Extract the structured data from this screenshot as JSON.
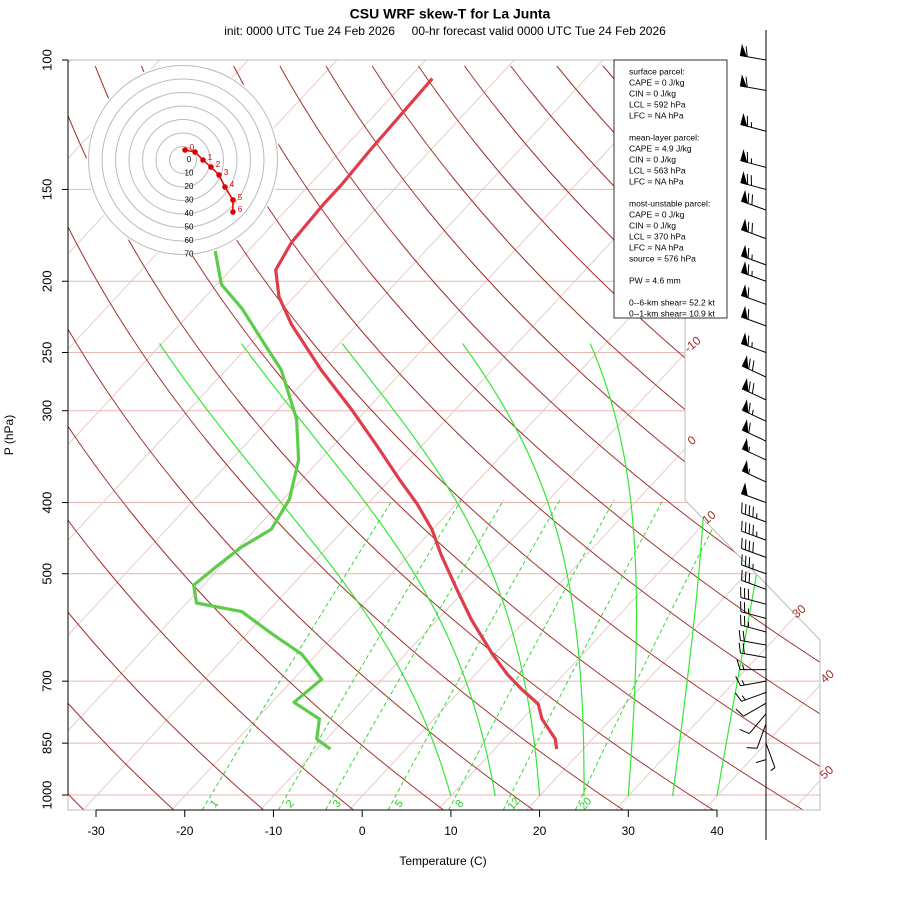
{
  "chart_data": {
    "type": "skewt",
    "title": "CSU WRF skew-T for La Junta",
    "subtitle": "init: 0000 UTC Tue 24 Feb 2026     00-hr forecast valid 0000 UTC Tue 24 Feb 2026",
    "x_label": "Temperature (C)",
    "y_label": "P (hPa)",
    "xlim": [
      -33.16,
      51.61
    ],
    "xticks": [
      -30,
      -20,
      -10,
      0,
      10,
      20,
      30,
      40
    ],
    "ylim": [
      1048,
      100
    ],
    "yticks": [
      100,
      150,
      200,
      250,
      300,
      400,
      500,
      700,
      850,
      1000
    ],
    "log_y": true,
    "grid": true,
    "series": [
      {
        "color": "#e03c4a",
        "pressure": [
          866,
          839,
          788,
          752,
          718,
          685,
          643,
          577,
          525,
          471,
          435,
          402,
          372,
          334,
          299,
          264,
          229,
          210,
          193,
          177,
          157,
          148,
          133,
          106
        ],
        "values": [
          17.0,
          15.8,
          12.2,
          10.2,
          6.8,
          3.6,
          -0.2,
          -6.2,
          -11.0,
          -16.4,
          -20.1,
          -24.4,
          -29.0,
          -35.2,
          -41.7,
          -49.3,
          -57.4,
          -61.7,
          -64.9,
          -66.0,
          -66.4,
          -66.4,
          -66.8,
          -67.3
        ]
      },
      {
        "color": "#5ccc4a",
        "pressure": [
          866,
          839,
          788,
          748,
          696,
          643,
          604,
          563,
          548,
          518,
          489,
          460,
          435,
          396,
          350,
          308,
          264,
          240,
          218,
          202,
          181
        ],
        "values": [
          -8.5,
          -11.1,
          -12.9,
          -17.5,
          -16.8,
          -21.7,
          -27.1,
          -32.9,
          -38.9,
          -41.1,
          -40.5,
          -39.7,
          -38.2,
          -39.3,
          -42.4,
          -46.9,
          -53.8,
          -59.2,
          -64.6,
          -69.5,
          -73.9
        ]
      }
    ],
    "isotherm_labels": [
      -10,
      0,
      10,
      30,
      40,
      50
    ],
    "mixing_ratio_labels": [
      1,
      2,
      3,
      5,
      8,
      12,
      20
    ],
    "wind": {
      "pressure": [
        100,
        110,
        125,
        140,
        150,
        160,
        175,
        190,
        200,
        215,
        230,
        250,
        270,
        290,
        310,
        330,
        350,
        375,
        400,
        425,
        450,
        475,
        500,
        525,
        550,
        575,
        600,
        625,
        650,
        675,
        700,
        725,
        750,
        775,
        800,
        825,
        850
      ],
      "speed": [
        60,
        60,
        65,
        65,
        70,
        70,
        70,
        65,
        65,
        60,
        60,
        65,
        70,
        70,
        65,
        60,
        55,
        55,
        50,
        45,
        45,
        40,
        35,
        30,
        30,
        25,
        25,
        20,
        20,
        15,
        15,
        15,
        10,
        10,
        10,
        10,
        5
      ],
      "direction": [
        280,
        280,
        285,
        285,
        285,
        290,
        290,
        290,
        290,
        290,
        290,
        290,
        295,
        295,
        295,
        295,
        295,
        295,
        290,
        290,
        290,
        290,
        290,
        290,
        285,
        285,
        285,
        280,
        280,
        270,
        260,
        250,
        240,
        220,
        200,
        180,
        160
      ]
    },
    "hodograph": {
      "rings": [
        0,
        10,
        20,
        30,
        40,
        50,
        60,
        70
      ],
      "u": [
        1.5,
        8.9,
        14.8,
        20.7,
        26.7,
        31.1,
        37,
        37
      ],
      "v": [
        7.4,
        5.9,
        0,
        -5.2,
        -11.1,
        -20,
        -29.6,
        -38.5
      ],
      "labels": [
        0,
        null,
        1,
        2,
        3,
        4,
        5,
        6
      ],
      "color": "#dd0000"
    },
    "stats": [
      [
        "surface parcel:",
        "CAPE = 0 J/kg",
        "CIN = 0 J/kg",
        "LCL = 592 hPa",
        "LFC = NA hPa"
      ],
      [
        "mean-layer parcel:",
        "CAPE = 4.9 J/kg",
        "CIN = 0 J/kg",
        "LCL = 563 hPa",
        "LFC = NA hPa"
      ],
      [
        "most-unstable parcel:",
        "CAPE = 0 J/kg",
        "CIN = 0 J/kg",
        "LCL = 370 hPa",
        "LFC = NA hPa",
        "source = 576 hPa"
      ],
      [
        "PW =  4.6 mm"
      ],
      [
        "0--6-km shear= 52.2 kt",
        "0--1-km shear= 10.9 kt"
      ]
    ]
  }
}
